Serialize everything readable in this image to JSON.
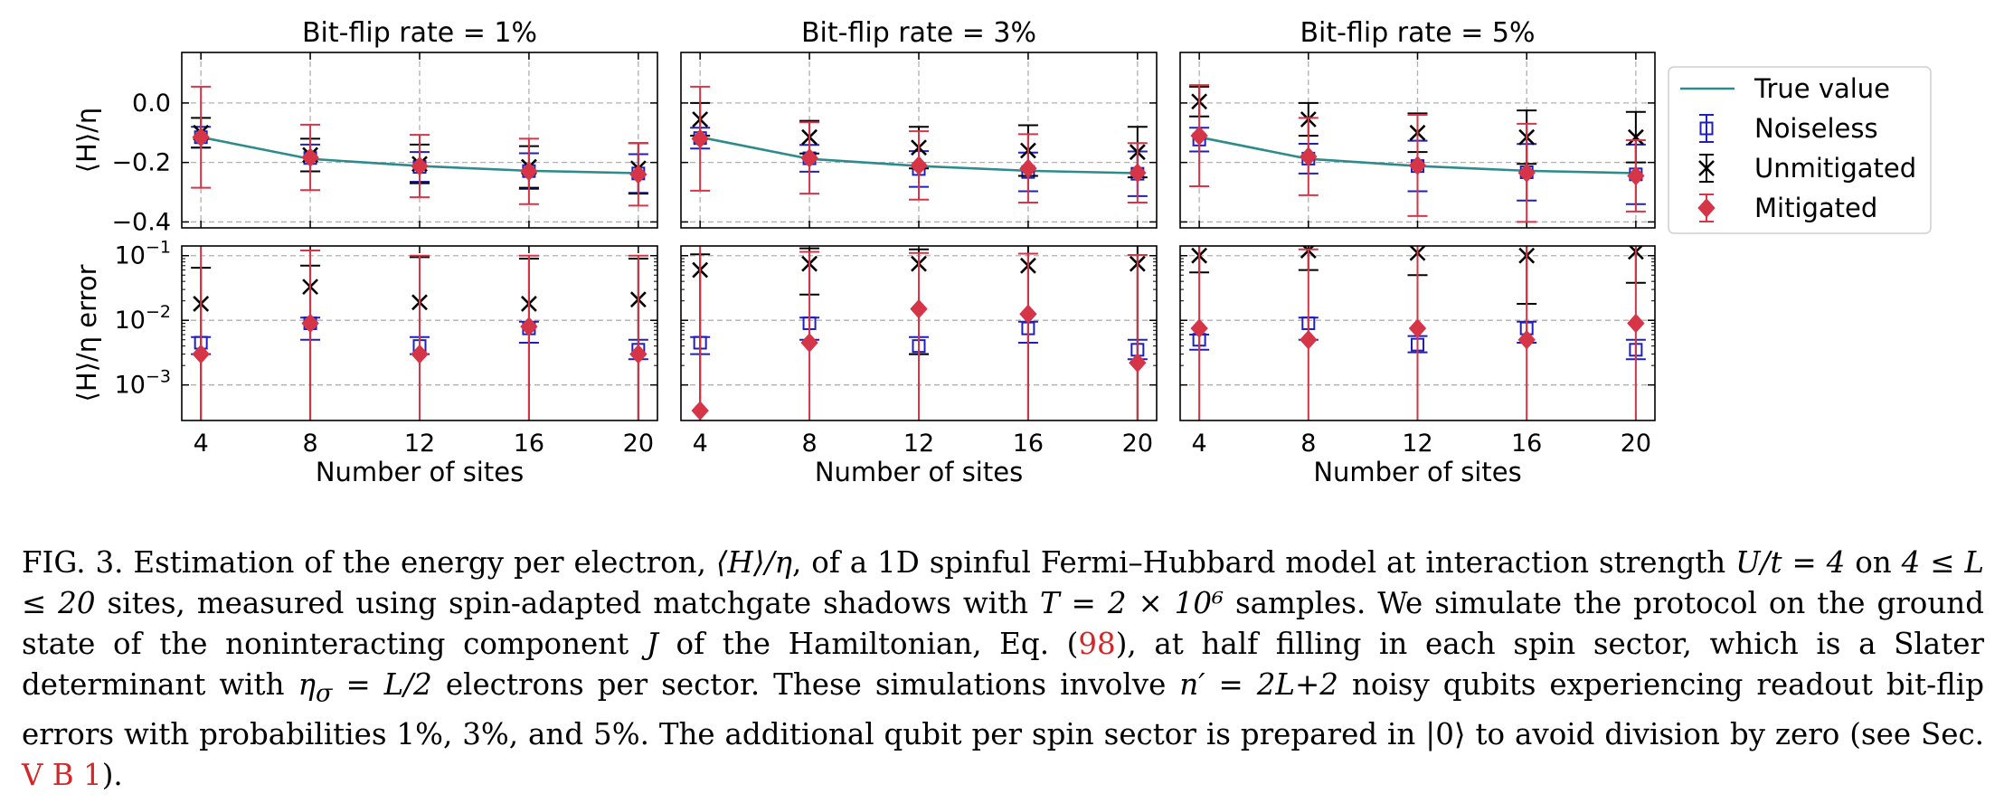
{
  "colors": {
    "true_value": "#2e8b8b",
    "noiseless": "#1f1fbf",
    "unmitigated": "#000000",
    "mitigated": "#d63447",
    "grid": "#b0b0b0"
  },
  "shared": {
    "xlabel": "Number of sites",
    "ylabel_top": "⟨H⟩/η",
    "ylabel_bottom": "⟨H⟩/η error"
  },
  "legend": {
    "entries": [
      {
        "label": "True value",
        "marker": "line"
      },
      {
        "label": "Noiseless",
        "marker": "square"
      },
      {
        "label": "Unmitigated",
        "marker": "x"
      },
      {
        "label": "Mitigated",
        "marker": "diamond"
      }
    ]
  },
  "chart_data": [
    {
      "type": "scatter",
      "title": "Bit-flip rate = 1%",
      "x": [
        4,
        8,
        12,
        16,
        20
      ],
      "xlabel": "Number of sites",
      "top": {
        "ylabel": "⟨H⟩/η",
        "ylim": [
          -0.42,
          0.17
        ],
        "yticks": [
          0.0,
          -0.2,
          -0.4
        ],
        "ytick_labels": [
          "0.0",
          "−0.2",
          "−0.4"
        ],
        "series": [
          {
            "name": "True value",
            "values": [
              -0.115,
              -0.188,
              -0.212,
              -0.228,
              -0.236
            ]
          },
          {
            "name": "Noiseless",
            "values": [
              -0.115,
              -0.185,
              -0.215,
              -0.229,
              -0.237
            ],
            "err": [
              0.035,
              0.045,
              0.05,
              0.06,
              0.065
            ]
          },
          {
            "name": "Unmitigated",
            "values": [
              -0.1,
              -0.175,
              -0.205,
              -0.215,
              -0.22
            ],
            "err": [
              0.05,
              0.055,
              0.065,
              0.07,
              0.085
            ]
          },
          {
            "name": "Mitigated",
            "values": [
              -0.115,
              -0.183,
              -0.212,
              -0.23,
              -0.24
            ],
            "err": [
              0.17,
              0.11,
              0.105,
              0.11,
              0.105
            ]
          }
        ]
      },
      "bottom": {
        "ylabel": "⟨H⟩/η error",
        "scale": "log",
        "ylim_exp": [
          -3.55,
          -0.85
        ],
        "yticks_exp": [
          -1,
          -2,
          -3
        ],
        "series": [
          {
            "name": "Noiseless",
            "values": [
              0.0045,
              0.009,
              0.004,
              0.0075,
              0.0035
            ],
            "err_lo": [
              0.0015,
              0.004,
              0.001,
              0.003,
              0.001
            ],
            "err_hi": [
              0.001,
              0.002,
              0.0015,
              0.002,
              0.0015
            ]
          },
          {
            "name": "Unmitigated",
            "values": [
              0.018,
              0.033,
              0.019,
              0.018,
              0.021
            ],
            "err_lo": [
              0.018,
              0.033,
              0.019,
              0.018,
              0.021
            ],
            "err_hi": [
              0.047,
              0.037,
              0.076,
              0.072,
              0.069
            ]
          },
          {
            "name": "Mitigated",
            "values": [
              0.003,
              0.009,
              0.003,
              0.008,
              0.003
            ],
            "err_lo": [
              0.003,
              0.009,
              0.003,
              0.008,
              0.003
            ],
            "err_hi": [
              0.167,
              0.111,
              0.097,
              0.092,
              0.097
            ]
          }
        ]
      }
    },
    {
      "type": "scatter",
      "title": "Bit-flip rate = 3%",
      "x": [
        4,
        8,
        12,
        16,
        20
      ],
      "xlabel": "Number of sites",
      "top": {
        "ylabel": "⟨H⟩/η",
        "ylim": [
          -0.42,
          0.17
        ],
        "yticks": [
          0.0,
          -0.2,
          -0.4
        ],
        "ytick_labels": [
          "0.0",
          "−0.2",
          "−0.4"
        ],
        "series": [
          {
            "name": "True value",
            "values": [
              -0.115,
              -0.188,
              -0.212,
              -0.228,
              -0.236
            ]
          },
          {
            "name": "Noiseless",
            "values": [
              -0.118,
              -0.186,
              -0.222,
              -0.232,
              -0.238
            ],
            "err": [
              0.035,
              0.045,
              0.06,
              0.065,
              0.075
            ]
          },
          {
            "name": "Unmitigated",
            "values": [
              -0.055,
              -0.115,
              -0.15,
              -0.16,
              -0.165
            ],
            "err": [
              0.055,
              0.055,
              0.07,
              0.085,
              0.085
            ]
          },
          {
            "name": "Mitigated",
            "values": [
              -0.12,
              -0.185,
              -0.21,
              -0.22,
              -0.235
            ],
            "err": [
              0.175,
              0.12,
              0.115,
              0.115,
              0.1
            ]
          }
        ]
      },
      "bottom": {
        "ylabel": "⟨H⟩/η error",
        "scale": "log",
        "ylim_exp": [
          -3.55,
          -0.85
        ],
        "yticks_exp": [
          -1,
          -2,
          -3
        ],
        "series": [
          {
            "name": "Noiseless",
            "values": [
              0.0045,
              0.009,
              0.004,
              0.0075,
              0.0035
            ],
            "err_lo": [
              0.0015,
              0.004,
              0.001,
              0.003,
              0.001
            ],
            "err_hi": [
              0.001,
              0.002,
              0.0015,
              0.002,
              0.0015
            ]
          },
          {
            "name": "Unmitigated",
            "values": [
              0.06,
              0.075,
              0.075,
              0.07,
              0.075
            ],
            "err_lo": [
              0.06,
              0.05,
              0.072,
              0.07,
              0.075
            ],
            "err_hi": [
              0.045,
              0.055,
              0.05,
              0.075,
              0.075
            ]
          },
          {
            "name": "Mitigated",
            "values": [
              0.0004,
              0.0045,
              0.015,
              0.0125,
              0.0022
            ],
            "err_lo": [
              0.0004,
              0.0045,
              0.015,
              0.0125,
              0.0022
            ],
            "err_hi": [
              0.18,
              0.11,
              0.095,
              0.095,
              0.1
            ]
          }
        ]
      }
    },
    {
      "type": "scatter",
      "title": "Bit-flip rate = 5%",
      "x": [
        4,
        8,
        12,
        16,
        20
      ],
      "xlabel": "Number of sites",
      "top": {
        "ylabel": "⟨H⟩/η",
        "ylim": [
          -0.42,
          0.17
        ],
        "yticks": [
          0.0,
          -0.2,
          -0.4
        ],
        "ytick_labels": [
          "0.0",
          "−0.2",
          "−0.4"
        ],
        "series": [
          {
            "name": "True value",
            "values": [
              -0.115,
              -0.188,
              -0.212,
              -0.228,
              -0.236
            ]
          },
          {
            "name": "Noiseless",
            "values": [
              -0.123,
              -0.187,
              -0.212,
              -0.233,
              -0.24
            ],
            "err": [
              0.04,
              0.05,
              0.085,
              0.095,
              0.1
            ]
          },
          {
            "name": "Unmitigated",
            "values": [
              0.005,
              -0.055,
              -0.1,
              -0.115,
              -0.115
            ],
            "err": [
              0.05,
              0.055,
              0.065,
              0.09,
              0.085
            ]
          },
          {
            "name": "Mitigated",
            "values": [
              -0.11,
              -0.18,
              -0.21,
              -0.235,
              -0.245
            ],
            "err": [
              0.17,
              0.13,
              0.17,
              0.165,
              0.12
            ]
          }
        ]
      },
      "bottom": {
        "ylabel": "⟨H⟩/η error",
        "scale": "log",
        "ylim_exp": [
          -3.55,
          -0.85
        ],
        "yticks_exp": [
          -1,
          -2,
          -3
        ],
        "series": [
          {
            "name": "Noiseless",
            "values": [
              0.005,
              0.009,
              0.0042,
              0.0075,
              0.0035
            ],
            "err_lo": [
              0.0015,
              0.004,
              0.001,
              0.003,
              0.001
            ],
            "err_hi": [
              0.001,
              0.002,
              0.0015,
              0.002,
              0.0015
            ]
          },
          {
            "name": "Unmitigated",
            "values": [
              0.1,
              0.12,
              0.11,
              0.1,
              0.115
            ],
            "err_lo": [
              0.045,
              0.06,
              0.06,
              0.082,
              0.077
            ],
            "err_hi": [
              0.05,
              0.035,
              0.04,
              0.05,
              0.045
            ]
          },
          {
            "name": "Mitigated",
            "values": [
              0.0075,
              0.005,
              0.0075,
              0.005,
              0.009
            ],
            "err_lo": [
              0.0075,
              0.005,
              0.0075,
              0.005,
              0.009
            ],
            "err_hi": [
              0.16,
              0.12,
              0.14,
              0.16,
              0.15
            ]
          }
        ]
      }
    }
  ],
  "caption": {
    "label": "FIG. 3.",
    "p1": " Estimation of the energy per electron, ",
    "m1": "⟨H⟩/η",
    "p2": ", of a 1D spinful Fermi–Hubbard model at interaction strength ",
    "m2": "U/t = 4",
    "p3": " on ",
    "m3": "4 ≤ L ≤ 20",
    "p4": " sites, measured using spin-adapted matchgate shadows with ",
    "m4": "T = 2 × 10⁶",
    "p5": " samples. We simulate the protocol on the ground state of the noninteracting component ",
    "m5": "J",
    "p6": " of the Hamiltonian, Eq. (",
    "ref1": "98",
    "p7": "), at half filling in each spin sector, which is a Slater determinant with ",
    "m6": "η",
    "m6sub": "σ",
    "m6b": " = L/2",
    "p8": " electrons per sector. These simulations involve ",
    "m7": "n′ = 2L+2",
    "p9": " noisy qubits experiencing readout bit-flip errors with probabilities 1%, 3%, and 5%. The additional qubit per spin sector is prepared in ",
    "m8": "|0⟩",
    "p10": " to avoid division by zero (see Sec. ",
    "ref2": "V B 1",
    "p11": ")."
  }
}
